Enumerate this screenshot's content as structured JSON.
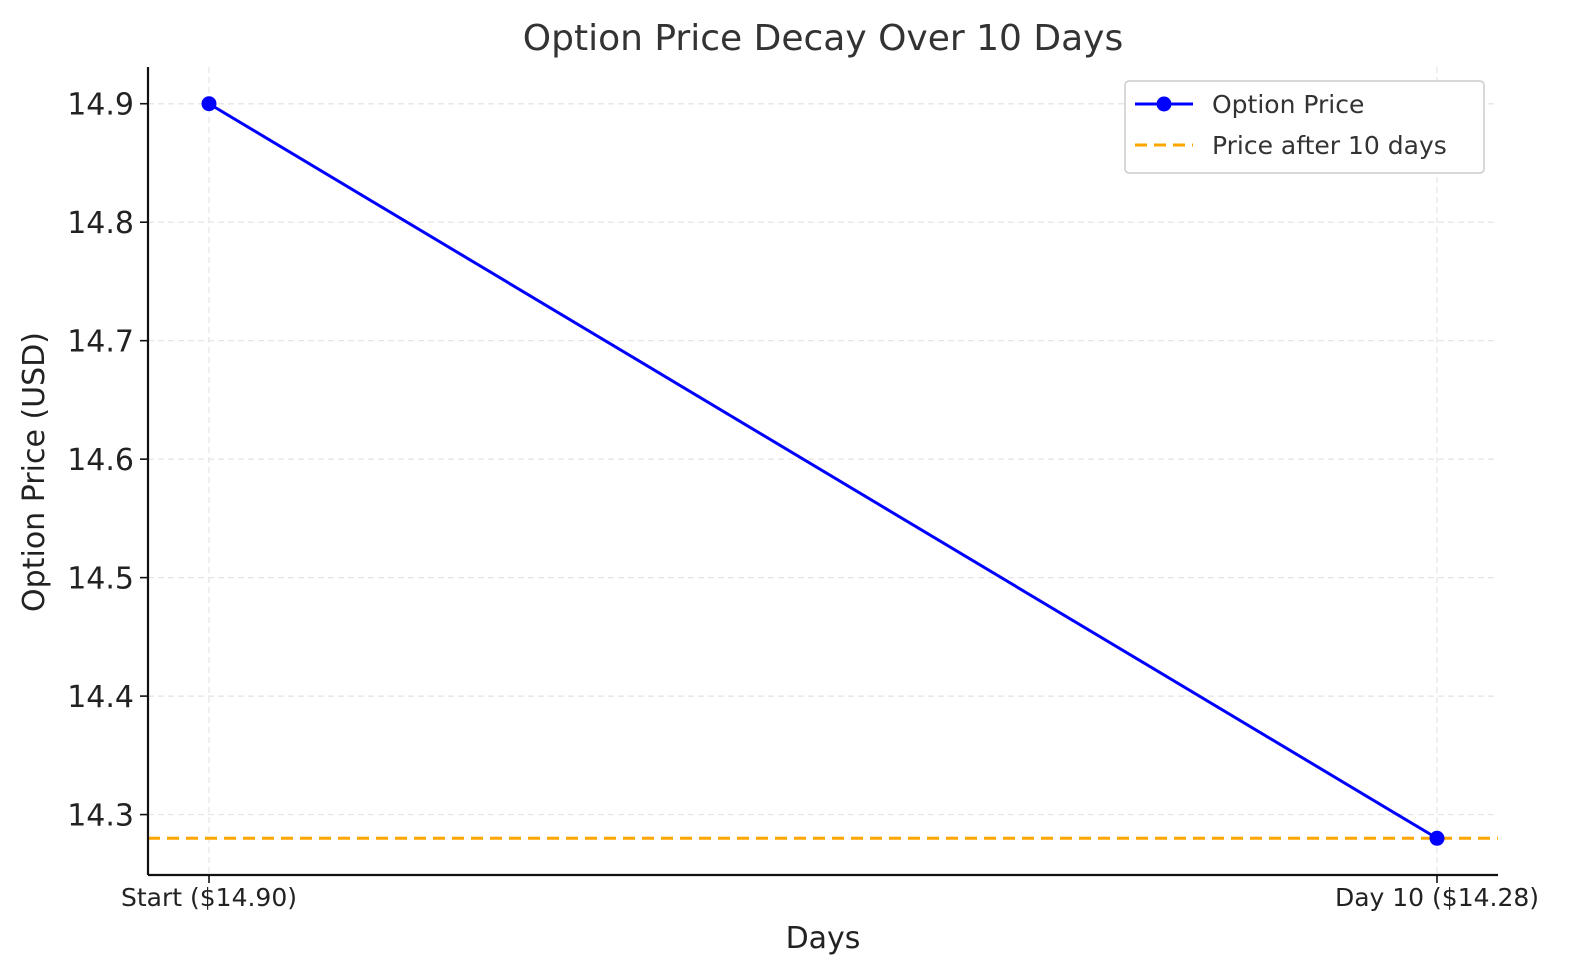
{
  "chart_data": {
    "type": "line",
    "title": "Option Price Decay Over 10 Days",
    "xlabel": "Days",
    "ylabel": "Option Price (USD)",
    "categories": [
      "Start ($14.90)",
      "Day 10 ($14.28)"
    ],
    "series": [
      {
        "name": "Option Price",
        "values": [
          14.9,
          14.28
        ],
        "color": "#0000ff",
        "style": "solid",
        "marker": "circle"
      }
    ],
    "reference_lines": [
      {
        "name": "Price after 10 days",
        "y": 14.28,
        "color": "#ffa500",
        "style": "dashed"
      }
    ],
    "yticks": [
      14.3,
      14.4,
      14.5,
      14.6,
      14.7,
      14.8,
      14.9
    ],
    "ytick_labels": [
      "14.3",
      "14.4",
      "14.5",
      "14.6",
      "14.7",
      "14.8",
      "14.9"
    ],
    "ylim": [
      14.249,
      14.931
    ],
    "grid": true,
    "legend": "top-right"
  }
}
